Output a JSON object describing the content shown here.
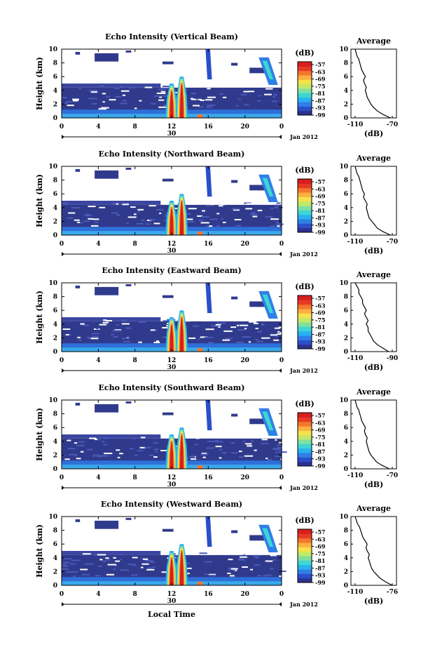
{
  "colors": {
    "scale": [
      "#2e3192",
      "#2b4fc9",
      "#2f7fe8",
      "#29b2f0",
      "#3ed6d2",
      "#7fe0a0",
      "#c4e86a",
      "#f5e24a",
      "#fbb040",
      "#f4762e",
      "#e63b22",
      "#d81e1e"
    ],
    "background_echo": "#303a8c",
    "axis": "#000000"
  },
  "figure": {
    "xlabel": "Local Time",
    "date_label": "Jan 2012",
    "day_label": "30",
    "colorbar_unit": "(dB)",
    "colorbar_ticks": [
      "-57",
      "-63",
      "-69",
      "-75",
      "-81",
      "-87",
      "-93",
      "-99"
    ],
    "x_ticks": [
      "0",
      "4",
      "8",
      "12",
      "16",
      "20",
      "0"
    ],
    "y_ticks": [
      "0",
      "2",
      "4",
      "6",
      "8",
      "10"
    ],
    "ylabel": "Height (km)",
    "avg_title": "Average",
    "avg_xlabel": "(dB)"
  },
  "chart_data": [
    {
      "type": "heatmap",
      "title": "Echo Intensity (Vertical Beam)",
      "ylabel": "Height (km)",
      "xlim": [
        0,
        24
      ],
      "ylim": [
        0,
        10
      ],
      "zlim": [
        -99,
        -57
      ],
      "avg": {
        "title": "Average",
        "xlabel": "(dB)",
        "x_ticks": [
          "-110",
          "-70"
        ],
        "heights": [
          0,
          0.5,
          1,
          1.5,
          2,
          2.5,
          3,
          3.5,
          4,
          4.5,
          5,
          5.5,
          6,
          6.5,
          7,
          7.5,
          8,
          8.5,
          9,
          9.5,
          10
        ],
        "values": [
          -72,
          -80,
          -86,
          -90,
          -93,
          -95,
          -97,
          -98,
          -99,
          -98,
          -100,
          -101,
          -99,
          -101,
          -103,
          -104,
          -105,
          -106,
          -108,
          -109,
          -110
        ]
      }
    },
    {
      "type": "heatmap",
      "title": "Echo Intensity (Northward Beam)",
      "ylabel": "Height (km)",
      "xlim": [
        0,
        24
      ],
      "ylim": [
        0,
        10
      ],
      "zlim": [
        -99,
        -57
      ],
      "avg": {
        "title": "Average",
        "xlabel": "(dB)",
        "x_ticks": [
          "-110",
          "-70"
        ],
        "heights": [
          0,
          0.5,
          1,
          1.5,
          2,
          2.5,
          3,
          3.5,
          4,
          4.5,
          5,
          5.5,
          6,
          6.5,
          7,
          7.5,
          8,
          8.5,
          9,
          9.5,
          10
        ],
        "values": [
          -72,
          -80,
          -86,
          -89,
          -92,
          -95,
          -96,
          -97,
          -98,
          -97,
          -99,
          -101,
          -100,
          -102,
          -103,
          -104,
          -105,
          -106,
          -108,
          -109,
          -110
        ]
      }
    },
    {
      "type": "heatmap",
      "title": "Echo Intensity (Eastward Beam)",
      "ylabel": "Height (km)",
      "xlim": [
        0,
        24
      ],
      "ylim": [
        0,
        10
      ],
      "zlim": [
        -99,
        -57
      ],
      "avg": {
        "title": "Average",
        "xlabel": "(dB)",
        "x_ticks": [
          "-110",
          "-90"
        ],
        "heights": [
          0,
          0.5,
          1,
          1.5,
          2,
          2.5,
          3,
          3.5,
          4,
          4.5,
          5,
          5.5,
          6,
          6.5,
          7,
          7.5,
          8,
          8.5,
          9,
          9.5,
          10
        ],
        "values": [
          -92,
          -95,
          -98,
          -100,
          -101,
          -102,
          -103,
          -103,
          -104,
          -103,
          -104,
          -105,
          -104,
          -105,
          -106,
          -106,
          -107,
          -108,
          -108,
          -109,
          -110
        ]
      }
    },
    {
      "type": "heatmap",
      "title": "Echo Intensity (Southward Beam)",
      "ylabel": "Height (km)",
      "xlim": [
        0,
        24
      ],
      "ylim": [
        0,
        10
      ],
      "zlim": [
        -99,
        -57
      ],
      "avg": {
        "title": "Average",
        "xlabel": "(dB)",
        "x_ticks": [
          "-110",
          "-70"
        ],
        "heights": [
          0,
          0.5,
          1,
          1.5,
          2,
          2.5,
          3,
          3.5,
          4,
          4.5,
          5,
          5.5,
          6,
          6.5,
          7,
          7.5,
          8,
          8.5,
          9,
          9.5,
          10
        ],
        "values": [
          -73,
          -81,
          -87,
          -90,
          -93,
          -95,
          -96,
          -97,
          -98,
          -97,
          -99,
          -100,
          -99,
          -101,
          -103,
          -104,
          -105,
          -106,
          -108,
          -109,
          -110
        ]
      }
    },
    {
      "type": "heatmap",
      "title": "Echo Intensity (Westward Beam)",
      "ylabel": "Height (km)",
      "xlim": [
        0,
        24
      ],
      "ylim": [
        0,
        10
      ],
      "zlim": [
        -99,
        -57
      ],
      "avg": {
        "title": "Average",
        "xlabel": "(dB)",
        "x_ticks": [
          "-110",
          "-76"
        ],
        "heights": [
          0,
          0.5,
          1,
          1.5,
          2,
          2.5,
          3,
          3.5,
          4,
          4.5,
          5,
          5.5,
          6,
          6.5,
          7,
          7.5,
          8,
          8.5,
          9,
          9.5,
          10
        ],
        "values": [
          -76,
          -82,
          -87,
          -90,
          -93,
          -95,
          -96,
          -97,
          -98,
          -97,
          -99,
          -100,
          -99,
          -101,
          -103,
          -104,
          -105,
          -106,
          -108,
          -109,
          -110
        ]
      }
    }
  ]
}
